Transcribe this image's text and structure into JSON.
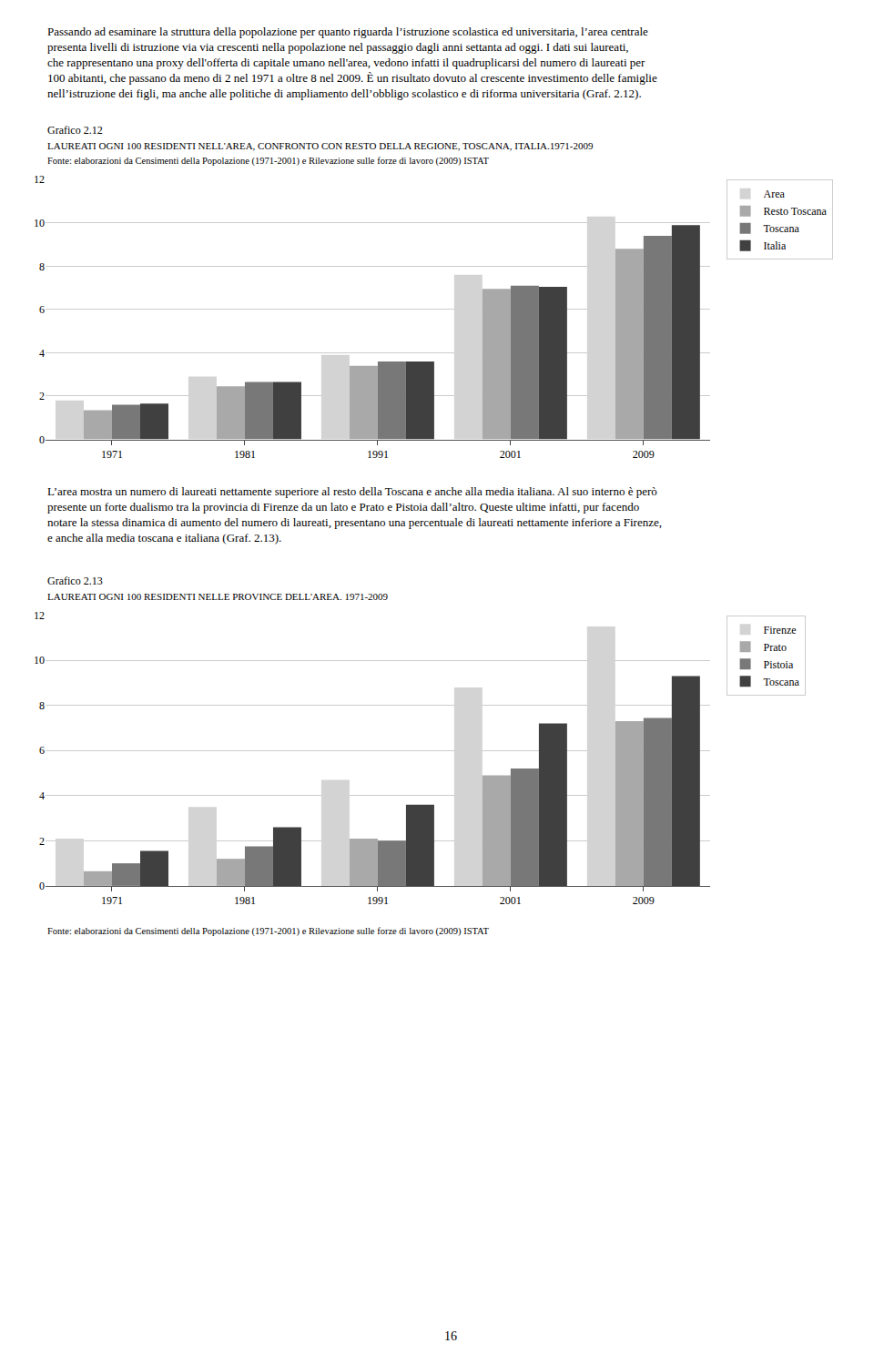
{
  "chart_data": [
    {
      "type": "bar",
      "title": "Grafico 2.12",
      "subtitle": "LAUREATI OGNI 100 RESIDENTI NELL'AREA, CONFRONTO CON RESTO DELLA REGIONE, TOSCANA, ITALIA.1971-2009",
      "categories": [
        "1971",
        "1981",
        "1991",
        "2001",
        "2009"
      ],
      "series": [
        {
          "name": "Area",
          "color": "#d3d3d3",
          "values": [
            1.8,
            2.9,
            3.9,
            7.6,
            10.3
          ]
        },
        {
          "name": "Resto Toscana",
          "color": "#a9a9a9",
          "values": [
            1.35,
            2.45,
            3.4,
            6.95,
            8.8
          ]
        },
        {
          "name": "Toscana",
          "color": "#787878",
          "values": [
            1.6,
            2.65,
            3.6,
            7.1,
            9.4
          ]
        },
        {
          "name": "Italia",
          "color": "#404040",
          "values": [
            1.65,
            2.65,
            3.6,
            7.05,
            9.9
          ]
        }
      ],
      "ylim": [
        0,
        12
      ],
      "yticks": [
        0,
        2,
        4,
        6,
        8,
        10,
        12
      ],
      "grid": true,
      "legend": "right",
      "annotations": [
        "Passando ad esaminare la struttura della popolazione per quanto riguarda l’istruzione scolastica ed universitaria, l’area centrale presenta livelli di istruzione via via crescenti nella popolazione nel passaggio dagli anni settanta ad oggi. I dati sui laureati, che rappresentano una proxy dell'offerta di capitale umano nell'area, vedono infatti il quadruplicarsi del numero di laureati per 100 abitanti, che passano da meno di 2 nel 1971 a oltre 8 nel 2009. È un risultato dovuto al crescente investimento delle famiglie nell’istruzione dei figli, ma anche alle politiche di ampliamento dell’obbligo scolastico e di riforma universitaria (Graf. 2.12).",
        "Fonte: elaborazioni da Censimenti della Popolazione (1971-2001) e Rilevazione sulle forze di lavoro (2009) ISTAT"
      ]
    },
    {
      "type": "bar",
      "title": "Grafico 2.13",
      "subtitle": "LAUREATI OGNI 100 RESIDENTI NELLE PROVINCE DELL'AREA. 1971-2009",
      "categories": [
        "1971",
        "1981",
        "1991",
        "2001",
        "2009"
      ],
      "series": [
        {
          "name": "Firenze",
          "color": "#d3d3d3",
          "values": [
            2.1,
            3.5,
            4.7,
            8.8,
            11.5
          ]
        },
        {
          "name": "Prato",
          "color": "#a9a9a9",
          "values": [
            0.65,
            1.2,
            2.1,
            4.9,
            7.3
          ]
        },
        {
          "name": "Pistoia",
          "color": "#787878",
          "values": [
            1.0,
            1.75,
            2.0,
            5.2,
            7.45
          ]
        },
        {
          "name": "Toscana",
          "color": "#404040",
          "values": [
            1.55,
            2.6,
            3.6,
            7.2,
            9.3
          ]
        }
      ],
      "ylim": [
        0,
        12
      ],
      "yticks": [
        0,
        2,
        4,
        6,
        8,
        10,
        12
      ],
      "grid": true,
      "legend": "right",
      "annotations": [
        "L’area mostra un numero di laureati nettamente superiore al resto della Toscana e anche alla media italiana. Al suo interno è però presente un forte dualismo tra la provincia di Firenze da un lato e Prato e Pistoia dall’altro. Queste ultime infatti, pur facendo notare la stessa dinamica di aumento del numero di laureati, presentano una percentuale di laureati nettamente inferiore a Firenze, e anche alla media toscana e italiana (Graf. 2.13).",
        "Fonte: elaborazioni da Censimenti della Popolazione (1971-2001) e Rilevazione sulle forze di lavoro (2009) ISTAT",
        "16"
      ]
    }
  ]
}
